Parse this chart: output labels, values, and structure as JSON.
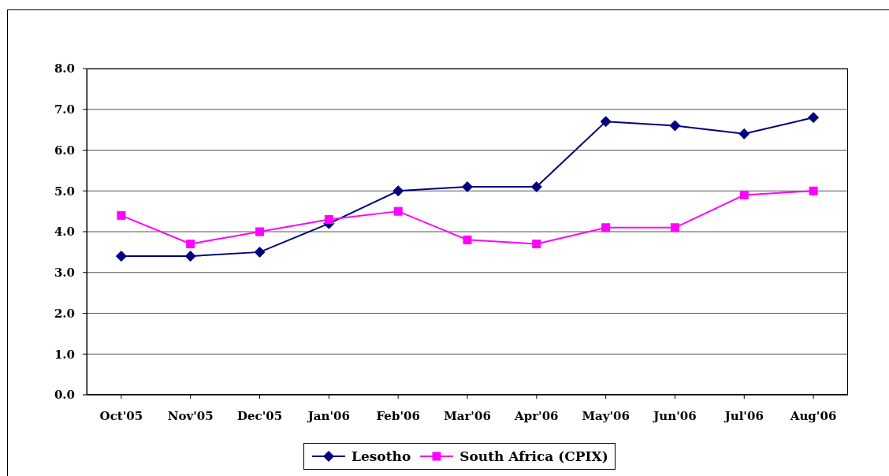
{
  "chart_data": {
    "type": "line",
    "categories": [
      "Oct'05",
      "Nov'05",
      "Dec'05",
      "Jan'06",
      "Feb'06",
      "Mar'06",
      "Apr'06",
      "May'06",
      "Jun'06",
      "Jul'06",
      "Aug'06"
    ],
    "series": [
      {
        "name": "Lesotho",
        "color": "#000080",
        "marker": "diamond",
        "values": [
          3.4,
          3.4,
          3.5,
          4.2,
          5.0,
          5.1,
          5.1,
          6.7,
          6.6,
          6.4,
          6.8
        ]
      },
      {
        "name": "South Africa (CPIX)",
        "color": "#ff00ff",
        "marker": "square",
        "values": [
          4.4,
          3.7,
          4.0,
          4.3,
          4.5,
          3.8,
          3.7,
          4.1,
          4.1,
          4.9,
          5.0
        ]
      }
    ],
    "ylim": [
      0,
      8
    ],
    "yticks": [
      {
        "value": 0,
        "label": "0.0"
      },
      {
        "value": 1,
        "label": "1.0"
      },
      {
        "value": 2,
        "label": "2.0"
      },
      {
        "value": 3,
        "label": "3.0"
      },
      {
        "value": 4,
        "label": "4.0"
      },
      {
        "value": 5,
        "label": "5.0"
      },
      {
        "value": 6,
        "label": "6.0"
      },
      {
        "value": 7,
        "label": "7.0"
      },
      {
        "value": 8,
        "label": "8.0"
      }
    ],
    "grid": "y",
    "legend": "bottom"
  }
}
